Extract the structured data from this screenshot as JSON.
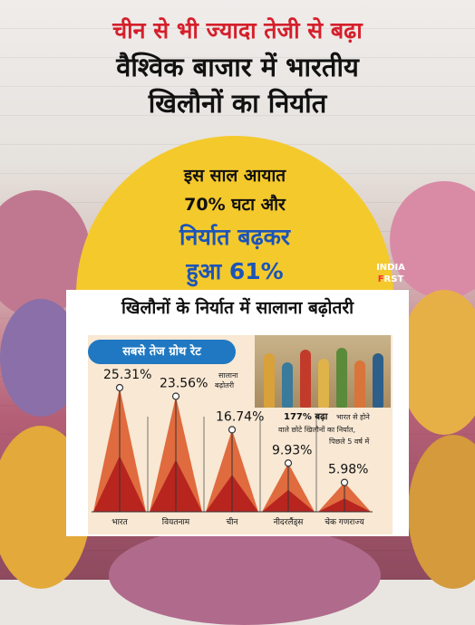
{
  "headline": {
    "line1": "चीन से भी ज्यादा तेजी से बढ़ा",
    "line2": "वैश्विक बाजार में भारतीय",
    "line3": "खिलौनों का निर्यात"
  },
  "callout": {
    "line1": "इस साल आयात",
    "line2": "70% घटा और",
    "line3": "निर्यात बढ़कर",
    "line4": "हुआ 61%"
  },
  "logo": {
    "line1": "INDIA",
    "line2a": "F",
    "line2b": "RST"
  },
  "card": {
    "title": "खिलौनों के निर्यात में सालाना बढ़ोतरी",
    "pill": "सबसे तेज ग्रोथ रेट",
    "legend_note_line1": "सालाना",
    "legend_note_line2": "बढ़ोतरी",
    "note_bold": "177% बढ़ा",
    "note_line1": "भारत से होने",
    "note_line2": "वाले छोटे खिलौनों का निर्यात,",
    "note_line3": "पिछले 5 वर्ष में"
  },
  "chart_data": {
    "type": "area",
    "title": "",
    "categories": [
      "भारत",
      "वियतनाम",
      "चीन",
      "नीदरलैंड्स",
      "चेक गणराज्य"
    ],
    "values": [
      25.31,
      23.56,
      16.74,
      9.93,
      5.98
    ],
    "labels": [
      "25.31%",
      "23.56%",
      "16.74%",
      "9.93%",
      "5.98%"
    ],
    "ylim": [
      0,
      28
    ],
    "colors": {
      "outer": "#e06b3e",
      "inner": "#b8251f",
      "marker": "#ffffff"
    }
  },
  "colors": {
    "headline_red": "#d51f2b",
    "callout_blue": "#1c54b8",
    "sun": "#f4c92c",
    "pill": "#1f78c1"
  }
}
